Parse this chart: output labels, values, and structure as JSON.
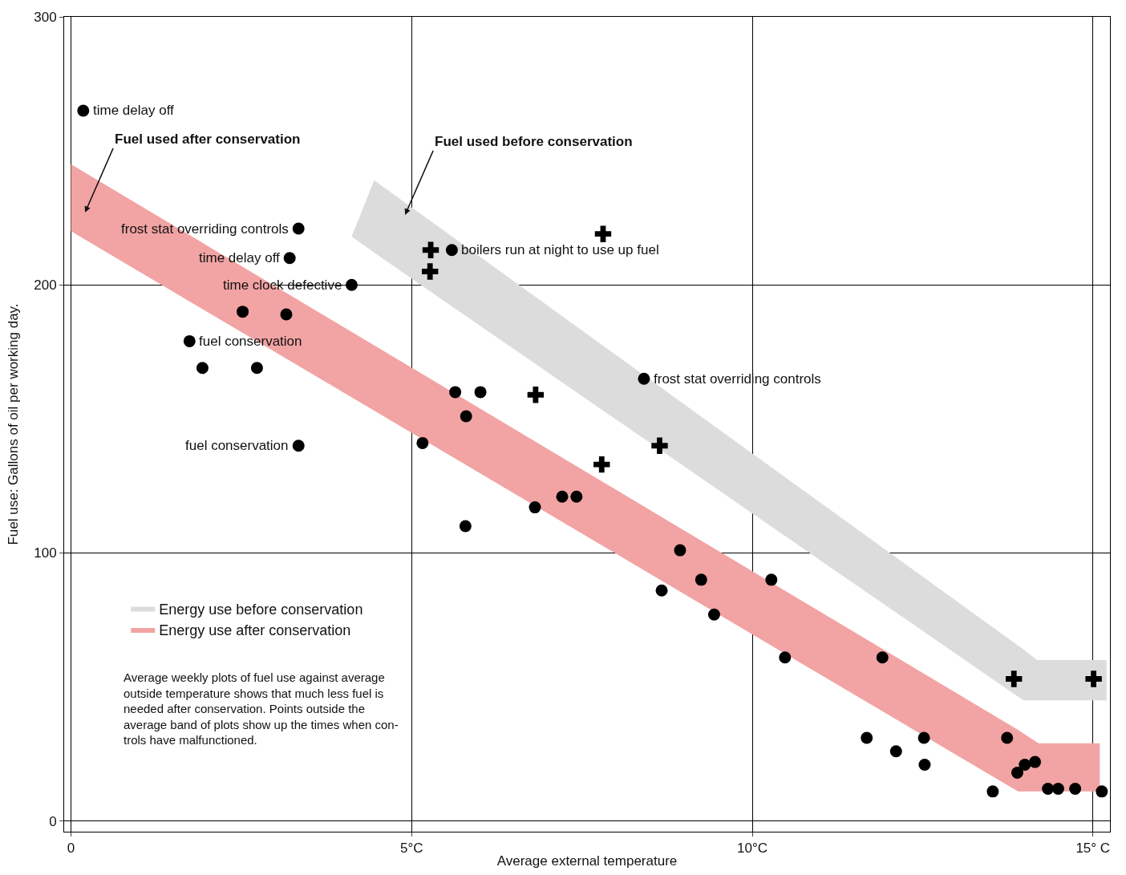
{
  "chart_data": {
    "type": "scatter",
    "xlabel": "Average external temperature",
    "ylabel": "Fuel use: Gallons of oil per working day.",
    "xlim": [
      -0.1,
      15.25
    ],
    "ylim": [
      -4,
      300
    ],
    "xticks": [
      {
        "value": 0,
        "label": "0"
      },
      {
        "value": 5,
        "label": "5°C"
      },
      {
        "value": 10,
        "label": "10°C"
      },
      {
        "value": 15,
        "label": "15° C"
      }
    ],
    "yticks": [
      0,
      100,
      200,
      300
    ],
    "grid": true,
    "legend": "bottom left",
    "series": [
      {
        "type": "area",
        "name": "Energy use before conservation",
        "color": "#dcdcdc",
        "x": [
          4.12,
          4.45,
          13.98,
          14.18,
          15.2
        ],
        "values": [
          null,
          null,
          null,
          null,
          null
        ],
        "lower": [
          218,
          212,
          45,
          45,
          45
        ],
        "upper": [
          218,
          239,
          64,
          60,
          60
        ]
      },
      {
        "type": "area",
        "name": "Energy use after conservation",
        "color": "#f2a3a3",
        "x": [
          0,
          13.9,
          14.2,
          15.1
        ],
        "values": [
          null,
          null,
          null,
          null
        ],
        "lower": [
          220,
          11,
          11,
          11
        ],
        "upper": [
          245,
          34,
          29,
          29
        ]
      },
      {
        "marker": "circle",
        "color": "#000000",
        "x": [
          0.18,
          3.34,
          3.21,
          4.12,
          2.52,
          3.16,
          1.74,
          1.93,
          2.73,
          3.34,
          5.16,
          5.64,
          6.01,
          5.8,
          5.79,
          6.81,
          7.21,
          7.42,
          5.59,
          8.41,
          8.94,
          9.25,
          8.67,
          9.44,
          10.28,
          10.48,
          11.91,
          11.68,
          12.11,
          12.52,
          12.53,
          13.53,
          13.74,
          13.89,
          14.0,
          14.15,
          14.34,
          14.49,
          14.74,
          15.13
        ],
        "values": [
          265,
          221,
          210,
          200,
          190,
          189,
          179,
          169,
          169,
          140,
          141,
          160,
          160,
          151,
          110,
          117,
          121,
          121,
          213,
          165,
          101,
          90,
          86,
          77,
          90,
          61,
          61,
          31,
          26,
          31,
          21,
          11,
          31,
          18,
          21,
          22,
          12,
          12,
          12,
          11
        ]
      },
      {
        "marker": "cross",
        "color": "#000000",
        "x": [
          5.28,
          5.27,
          7.81,
          6.82,
          7.79,
          8.64,
          13.84,
          15.01
        ],
        "values": [
          213,
          205,
          219,
          159,
          133,
          140,
          53,
          53
        ]
      }
    ],
    "annotations": [
      {
        "text": "time delay off",
        "x": 0.18,
        "y": 265
      },
      {
        "text": "frost stat overriding controls",
        "x": 3.34,
        "y": 221
      },
      {
        "text": "time delay off",
        "x": 3.21,
        "y": 210
      },
      {
        "text": "time clock defective",
        "x": 4.12,
        "y": 200
      },
      {
        "text": "fuel conservation",
        "x": 1.74,
        "y": 179
      },
      {
        "text": "fuel conservation",
        "x": 3.34,
        "y": 140
      },
      {
        "text": "boilers run at night to use up fuel",
        "x": 5.59,
        "y": 213
      },
      {
        "text": "frost stat overriding controls",
        "x": 8.41,
        "y": 165
      },
      "Fuel used after conservation",
      "Fuel used before conservation",
      "Average weekly plots of fuel use against average\noutside temperature shows that much less fuel is\nneeded after conservation. Points outside the\naverage band of plots show up the times when con-\ntrols have malfunctioned."
    ]
  }
}
